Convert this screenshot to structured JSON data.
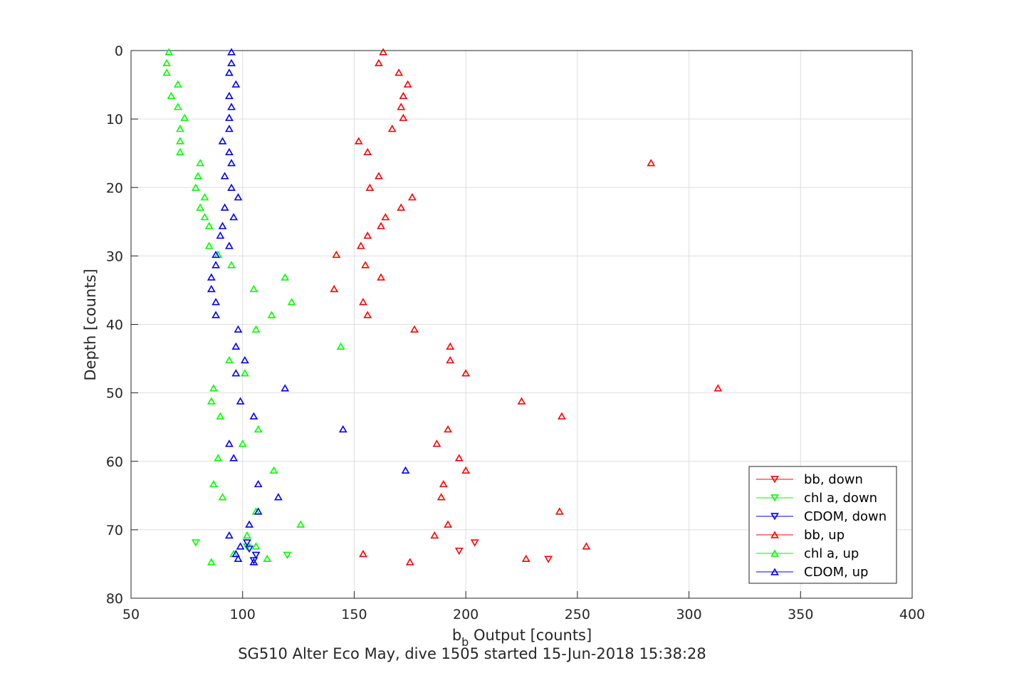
{
  "chart_data": {
    "type": "scatter",
    "title": "",
    "xlabel_base": "b",
    "xlabel_sub": "b",
    "xlabel_rest": " Output [counts]",
    "ylabel": "Depth [counts]",
    "subtitle": "SG510 Alter Eco May, dive 1505 started 15-Jun-2018 15:38:28",
    "xlim": [
      50,
      400
    ],
    "ylim": [
      0,
      80
    ],
    "y_reversed": true,
    "grid": true,
    "x_ticks": [
      50,
      100,
      150,
      200,
      250,
      300,
      350,
      400
    ],
    "y_ticks": [
      0,
      10,
      20,
      30,
      40,
      50,
      60,
      70,
      80
    ],
    "legend_position": "bottom-right",
    "series": [
      {
        "name": "bb, down",
        "color": "#ff0000",
        "marker": "triangle-down",
        "points": [
          [
            204,
            71.9
          ],
          [
            197,
            73.1
          ],
          [
            237,
            74.3
          ]
        ]
      },
      {
        "name": "chl a, down",
        "color": "#00ff00",
        "marker": "triangle-down",
        "points": [
          [
            79,
            71.9
          ],
          [
            102,
            72.5
          ],
          [
            120,
            73.7
          ]
        ]
      },
      {
        "name": "CDOM, down",
        "color": "#0000ff",
        "marker": "triangle-down",
        "points": [
          [
            102,
            71.9
          ],
          [
            103,
            72.8
          ],
          [
            106,
            73.7
          ],
          [
            105,
            74.5
          ]
        ]
      },
      {
        "name": "bb, up",
        "color": "#ff0000",
        "marker": "triangle-up",
        "points": [
          [
            163,
            0.2
          ],
          [
            161,
            1.8
          ],
          [
            170,
            3.2
          ],
          [
            174,
            4.9
          ],
          [
            172,
            6.6
          ],
          [
            171,
            8.2
          ],
          [
            172,
            9.8
          ],
          [
            167,
            11.4
          ],
          [
            152,
            13.2
          ],
          [
            156,
            14.8
          ],
          [
            283,
            16.4
          ],
          [
            161,
            18.3
          ],
          [
            157,
            20.0
          ],
          [
            176,
            21.4
          ],
          [
            171,
            22.9
          ],
          [
            164,
            24.3
          ],
          [
            162,
            25.6
          ],
          [
            156,
            27.0
          ],
          [
            153,
            28.5
          ],
          [
            142,
            29.8
          ],
          [
            155,
            31.3
          ],
          [
            162,
            33.1
          ],
          [
            141,
            34.8
          ],
          [
            154,
            36.7
          ],
          [
            156,
            38.6
          ],
          [
            177,
            40.7
          ],
          [
            193,
            43.2
          ],
          [
            193,
            45.2
          ],
          [
            200,
            47.1
          ],
          [
            313,
            49.3
          ],
          [
            225,
            51.2
          ],
          [
            243,
            53.4
          ],
          [
            192,
            55.3
          ],
          [
            187,
            57.4
          ],
          [
            197,
            59.5
          ],
          [
            200,
            61.3
          ],
          [
            190,
            63.3
          ],
          [
            189,
            65.2
          ],
          [
            242,
            67.3
          ],
          [
            192,
            69.2
          ],
          [
            186,
            70.8
          ],
          [
            254,
            72.4
          ],
          [
            154,
            73.5
          ],
          [
            227,
            74.2
          ],
          [
            175,
            74.7
          ]
        ]
      },
      {
        "name": "chl a, up",
        "color": "#00ff00",
        "marker": "triangle-up",
        "points": [
          [
            67,
            0.2
          ],
          [
            66,
            1.8
          ],
          [
            66,
            3.2
          ],
          [
            71,
            4.9
          ],
          [
            68,
            6.6
          ],
          [
            71,
            8.2
          ],
          [
            74,
            9.8
          ],
          [
            72,
            11.4
          ],
          [
            72,
            13.2
          ],
          [
            72,
            14.8
          ],
          [
            81,
            16.4
          ],
          [
            80,
            18.3
          ],
          [
            79,
            20.0
          ],
          [
            83,
            21.4
          ],
          [
            81,
            22.9
          ],
          [
            83,
            24.3
          ],
          [
            85,
            25.6
          ],
          [
            85,
            28.5
          ],
          [
            89,
            29.8
          ],
          [
            95,
            31.3
          ],
          [
            119,
            33.1
          ],
          [
            105,
            34.8
          ],
          [
            122,
            36.7
          ],
          [
            113,
            38.6
          ],
          [
            106,
            40.7
          ],
          [
            144,
            43.2
          ],
          [
            94,
            45.2
          ],
          [
            101,
            47.1
          ],
          [
            87,
            49.3
          ],
          [
            86,
            51.2
          ],
          [
            90,
            53.4
          ],
          [
            107,
            55.3
          ],
          [
            100,
            57.4
          ],
          [
            89,
            59.5
          ],
          [
            114,
            61.3
          ],
          [
            87,
            63.3
          ],
          [
            91,
            65.2
          ],
          [
            106,
            67.3
          ],
          [
            126,
            69.2
          ],
          [
            102,
            70.8
          ],
          [
            106,
            72.4
          ],
          [
            96,
            73.5
          ],
          [
            111,
            74.2
          ],
          [
            86,
            74.7
          ]
        ]
      },
      {
        "name": "CDOM, up",
        "color": "#0000ff",
        "marker": "triangle-up",
        "points": [
          [
            95,
            0.2
          ],
          [
            95,
            1.8
          ],
          [
            94,
            3.2
          ],
          [
            97,
            4.9
          ],
          [
            94,
            6.6
          ],
          [
            95,
            8.2
          ],
          [
            94,
            9.8
          ],
          [
            94,
            11.4
          ],
          [
            91,
            13.2
          ],
          [
            94,
            14.8
          ],
          [
            95,
            16.4
          ],
          [
            92,
            18.3
          ],
          [
            95,
            20.0
          ],
          [
            98,
            21.4
          ],
          [
            92,
            22.9
          ],
          [
            96,
            24.3
          ],
          [
            91,
            25.6
          ],
          [
            90,
            27.0
          ],
          [
            94,
            28.5
          ],
          [
            88,
            29.8
          ],
          [
            88,
            31.3
          ],
          [
            86,
            33.1
          ],
          [
            86,
            34.8
          ],
          [
            88,
            36.7
          ],
          [
            88,
            38.6
          ],
          [
            98,
            40.7
          ],
          [
            97,
            43.2
          ],
          [
            101,
            45.2
          ],
          [
            97,
            47.1
          ],
          [
            119,
            49.3
          ],
          [
            99,
            51.2
          ],
          [
            105,
            53.4
          ],
          [
            145,
            55.3
          ],
          [
            94,
            57.4
          ],
          [
            96,
            59.5
          ],
          [
            173,
            61.3
          ],
          [
            107,
            63.3
          ],
          [
            116,
            65.2
          ],
          [
            107,
            67.3
          ],
          [
            103,
            69.2
          ],
          [
            94,
            70.8
          ],
          [
            99,
            72.4
          ],
          [
            97,
            73.5
          ],
          [
            98,
            74.2
          ],
          [
            105,
            74.7
          ]
        ]
      }
    ]
  }
}
